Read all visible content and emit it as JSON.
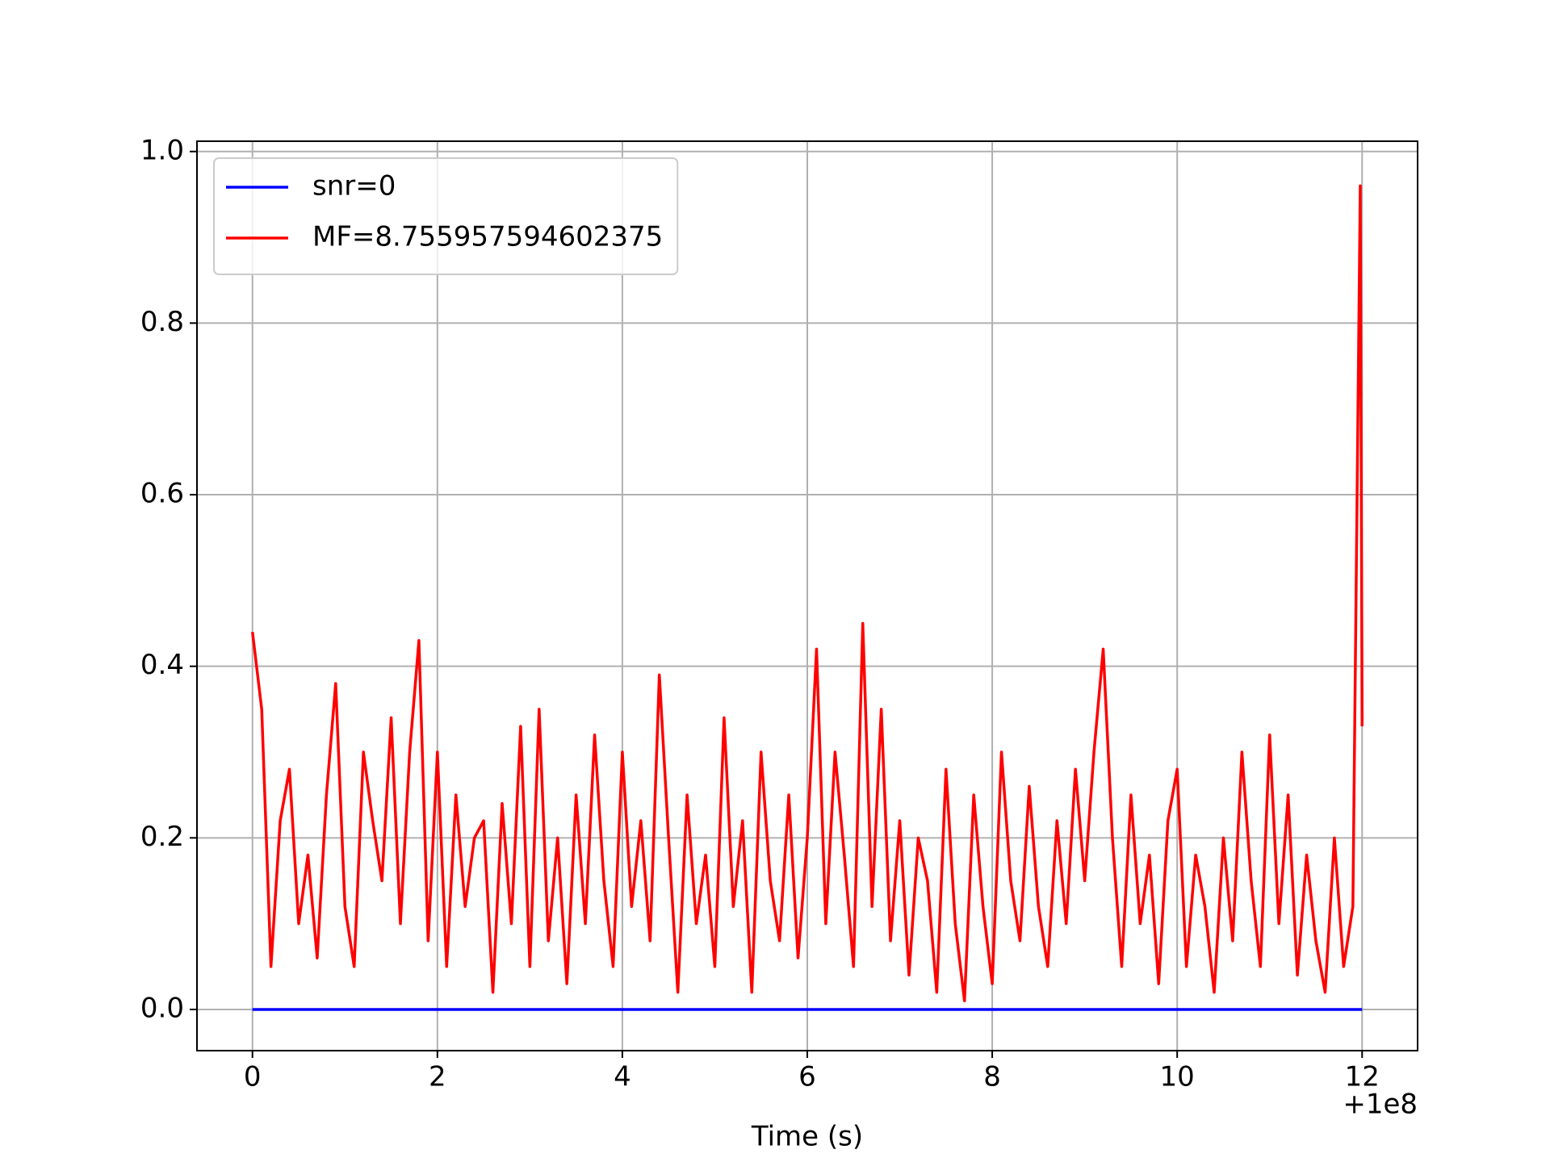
{
  "chart_data": {
    "type": "line",
    "xlabel": "Time (s)",
    "x_offset_label": "+1e8",
    "xlim": [
      -0.6,
      12.6
    ],
    "ylim": [
      -0.048,
      1.012
    ],
    "xticks": [
      0,
      2,
      4,
      6,
      8,
      10,
      12
    ],
    "yticks": [
      {
        "value": 0,
        "label": "0.0"
      },
      0.2,
      0.4,
      0.6,
      0.8,
      {
        "value": 1,
        "label": "1.0"
      }
    ],
    "grid": true,
    "legend": "upper left",
    "series": [
      {
        "name": "snr=0",
        "color": "#0000ff",
        "x": [
          0,
          12
        ],
        "values": [
          0,
          0
        ]
      },
      {
        "name": "MF=8.755957594602375",
        "color": "#ff0000",
        "x": [
          0,
          0.1,
          0.2,
          0.3,
          0.4,
          0.5,
          0.6,
          0.7,
          0.8,
          0.9,
          1,
          1.1,
          1.2,
          1.3,
          1.4,
          1.5,
          1.6,
          1.7,
          1.8,
          1.9,
          2,
          2.1,
          2.2,
          2.3,
          2.4,
          2.5,
          2.6,
          2.7,
          2.8,
          2.9,
          3,
          3.1,
          3.2,
          3.3,
          3.4,
          3.5,
          3.6,
          3.7,
          3.8,
          3.9,
          4,
          4.1,
          4.2,
          4.3,
          4.4,
          4.5,
          4.6,
          4.7,
          4.8,
          4.9,
          5,
          5.1,
          5.2,
          5.3,
          5.4,
          5.5,
          5.6,
          5.7,
          5.8,
          5.9,
          6,
          6.1,
          6.2,
          6.3,
          6.4,
          6.5,
          6.6,
          6.7,
          6.8,
          6.9,
          7,
          7.1,
          7.2,
          7.3,
          7.4,
          7.5,
          7.6,
          7.7,
          7.8,
          7.9,
          8,
          8.1,
          8.2,
          8.3,
          8.4,
          8.5,
          8.6,
          8.7,
          8.8,
          8.9,
          9,
          9.1,
          9.2,
          9.3,
          9.4,
          9.5,
          9.6,
          9.7,
          9.8,
          9.9,
          10,
          10.1,
          10.2,
          10.3,
          10.4,
          10.5,
          10.6,
          10.7,
          10.8,
          10.9,
          11,
          11.1,
          11.2,
          11.3,
          11.4,
          11.5,
          11.6,
          11.7,
          11.8,
          11.9,
          11.98,
          12
        ],
        "values": [
          0.44,
          0.35,
          0.05,
          0.22,
          0.28,
          0.1,
          0.18,
          0.06,
          0.25,
          0.38,
          0.12,
          0.05,
          0.3,
          0.22,
          0.15,
          0.34,
          0.1,
          0.3,
          0.43,
          0.08,
          0.3,
          0.05,
          0.25,
          0.12,
          0.2,
          0.22,
          0.02,
          0.24,
          0.1,
          0.33,
          0.05,
          0.35,
          0.08,
          0.2,
          0.03,
          0.25,
          0.1,
          0.32,
          0.15,
          0.05,
          0.3,
          0.12,
          0.22,
          0.08,
          0.39,
          0.2,
          0.02,
          0.25,
          0.1,
          0.18,
          0.05,
          0.34,
          0.12,
          0.22,
          0.02,
          0.3,
          0.15,
          0.08,
          0.25,
          0.06,
          0.2,
          0.42,
          0.1,
          0.3,
          0.18,
          0.05,
          0.45,
          0.12,
          0.35,
          0.08,
          0.22,
          0.04,
          0.2,
          0.15,
          0.02,
          0.28,
          0.1,
          0.01,
          0.25,
          0.12,
          0.03,
          0.3,
          0.15,
          0.08,
          0.26,
          0.12,
          0.05,
          0.22,
          0.1,
          0.28,
          0.15,
          0.3,
          0.42,
          0.2,
          0.05,
          0.25,
          0.1,
          0.18,
          0.03,
          0.22,
          0.28,
          0.05,
          0.18,
          0.12,
          0.02,
          0.2,
          0.08,
          0.3,
          0.15,
          0.05,
          0.32,
          0.1,
          0.25,
          0.04,
          0.18,
          0.08,
          0.02,
          0.2,
          0.05,
          0.12,
          0.96,
          0.33
        ]
      }
    ]
  }
}
